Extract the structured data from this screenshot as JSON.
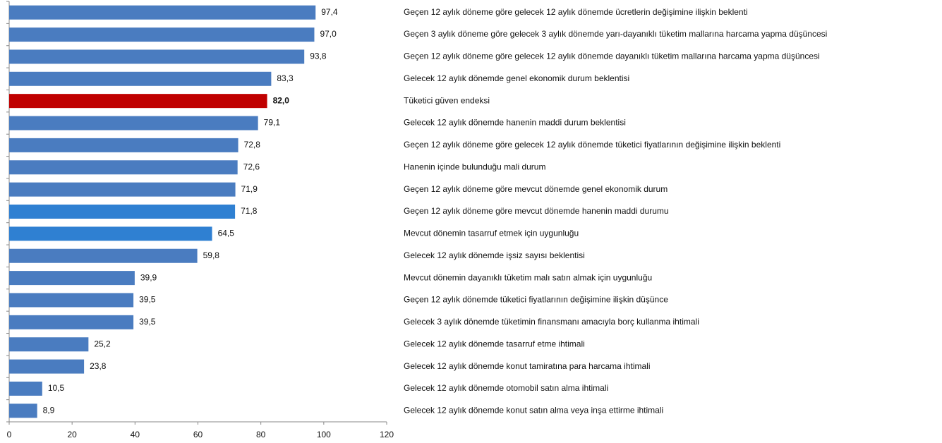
{
  "chart_data": {
    "type": "barh",
    "categories": [
      "Geçen 12 aylık döneme göre gelecek 12 aylık dönemde ücretlerin değişimine ilişkin beklenti",
      "Geçen 3 aylık döneme göre gelecek 3 aylık dönemde yarı-dayanıklı tüketim mallarına harcama yapma düşüncesi",
      "Geçen 12 aylık döneme göre gelecek 12 aylık dönemde  dayanıklı tüketim mallarına harcama yapma düşüncesi",
      "Gelecek 12 aylık dönemde genel ekonomik durum beklentisi",
      "Tüketici güven endeksi",
      "Gelecek 12 aylık dönemde hanenin maddi durum beklentisi",
      "Geçen 12 aylık döneme göre gelecek 12 aylık dönemde tüketici fiyatlarının değişimine ilişkin beklenti",
      "Hanenin içinde bulunduğu mali durum",
      "Geçen 12 aylık döneme göre mevcut dönemde genel ekonomik durum",
      "Geçen 12 aylık döneme göre mevcut dönemde hanenin maddi durumu",
      "Mevcut dönemin tasarruf etmek için uygunluğu",
      "Gelecek 12 aylık dönemde işsiz sayısı beklentisi",
      "Mevcut dönemin dayanıklı tüketim malı satın almak için uygunluğu",
      "Geçen 12 aylık dönemde tüketici fiyatlarının değişimine ilişkin düşünce",
      "Gelecek 3 aylık dönemde tüketimin finansmanı amacıyla borç kullanma ihtimali",
      "Gelecek 12 aylık dönemde tasarruf etme ihtimali",
      "Gelecek 12 aylık dönemde konut tamiratına para harcama ihtimali",
      "Gelecek 12 aylık dönemde otomobil satın alma ihtimali",
      "Gelecek 12 aylık dönemde konut satın alma veya inşa ettirme ihtimali"
    ],
    "values": [
      97.4,
      97.0,
      93.8,
      83.3,
      82.0,
      79.1,
      72.8,
      72.6,
      71.9,
      71.8,
      64.5,
      59.8,
      39.9,
      39.5,
      39.5,
      25.2,
      23.8,
      10.5,
      8.9
    ],
    "value_labels": [
      "97,4",
      "97,0",
      "93,8",
      "83,3",
      "82,0",
      "79,1",
      "72,8",
      "72,6",
      "71,9",
      "71,8",
      "64,5",
      "59,8",
      "39,9",
      "39,5",
      "39,5",
      "25,2",
      "23,8",
      "10,5",
      "8,9"
    ],
    "colors": [
      "#4a7cc0",
      "#4a7cc0",
      "#4a7cc0",
      "#4a7cc0",
      "#c00000",
      "#4a7cc0",
      "#4a7cc0",
      "#4a7cc0",
      "#4a7cc0",
      "#2f80d2",
      "#2f80d2",
      "#4a7cc0",
      "#4a7cc0",
      "#4a7cc0",
      "#4a7cc0",
      "#4a7cc0",
      "#4a7cc0",
      "#4a7cc0",
      "#4a7cc0"
    ],
    "highlight_color": "#c00000",
    "xlim": [
      0,
      120
    ],
    "xticks": [
      0,
      20,
      40,
      60,
      80,
      100,
      120
    ]
  }
}
